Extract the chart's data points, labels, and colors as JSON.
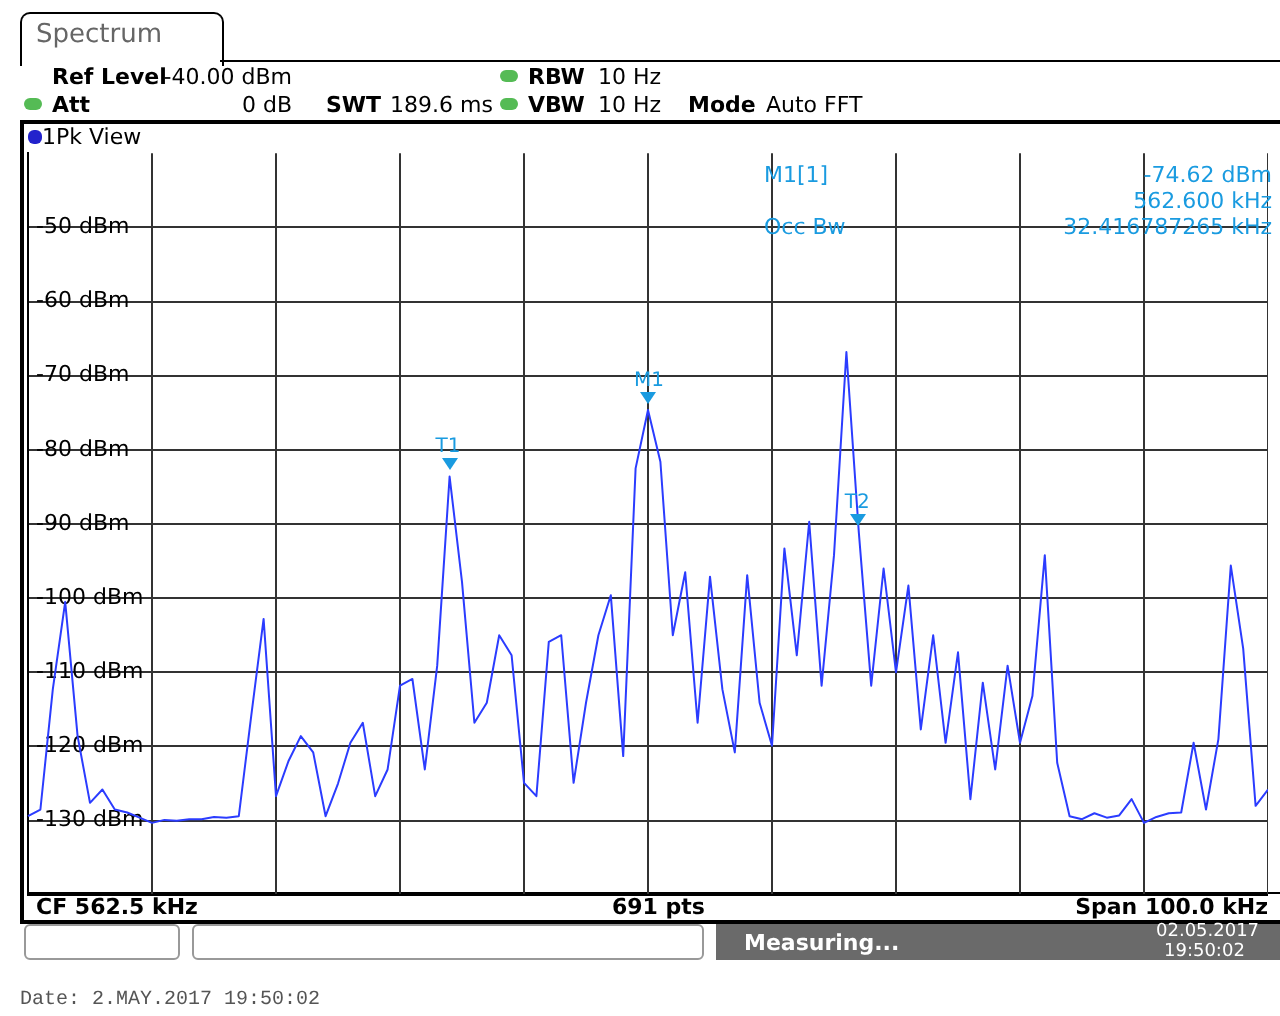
{
  "chart_data": {
    "type": "line",
    "title": "Spectrum",
    "subtitle": "1Pk View",
    "categories": [
      null,
      null,
      null,
      null,
      null,
      null,
      null,
      null,
      null,
      null,
      null,
      null,
      null,
      null,
      null,
      null,
      null,
      null,
      null,
      null,
      null,
      null,
      null,
      null,
      null,
      null,
      null,
      null,
      null,
      null,
      null,
      null,
      null,
      null,
      null,
      null,
      null,
      null,
      null,
      null,
      null,
      null,
      null,
      null,
      null,
      null,
      null,
      null,
      null,
      null,
      null,
      null,
      null,
      null,
      null,
      null,
      null,
      null,
      null,
      null,
      null,
      null,
      null,
      null,
      null,
      null,
      null,
      null,
      null,
      null,
      null,
      null,
      null,
      null,
      null,
      null,
      null,
      null,
      null,
      null,
      null,
      null,
      null,
      null,
      null,
      null,
      null,
      null,
      null,
      null,
      null,
      null,
      null,
      null,
      null,
      null,
      null,
      null,
      null,
      null,
      null
    ],
    "series": [
      {
        "color": "#2b3cff",
        "values": [
          -129.4,
          -128.5,
          -112.3,
          -100.5,
          -118.6,
          -127.6,
          -125.8,
          -128.5,
          -128.9,
          -129.6,
          -130.3,
          -129.9,
          -130.0,
          -129.8,
          -129.8,
          -129.5,
          -129.6,
          -129.4,
          -115.9,
          -102.8,
          -126.7,
          -122.0,
          -118.6,
          -120.8,
          -129.4,
          -125.0,
          -119.5,
          -116.8,
          -126.7,
          -123.1,
          -111.8,
          -110.9,
          -123.1,
          -109.1,
          -83.6,
          -97.8,
          -116.8,
          -114.1,
          -105.0,
          -107.7,
          -124.9,
          -126.7,
          -105.9,
          -105.0,
          -124.9,
          -114.1,
          -105.0,
          -99.6,
          -121.3,
          -82.5,
          -74.62,
          -81.6,
          -105.0,
          -96.5,
          -116.8,
          -97.1,
          -112.3,
          -120.8,
          -96.9,
          -114.1,
          -119.9,
          -93.3,
          -107.7,
          -89.7,
          -111.8,
          -94.2,
          -66.8,
          -91.1,
          -111.8,
          -96.0,
          -110.0,
          -98.3,
          -117.7,
          -105.0,
          -119.5,
          -107.3,
          -127.1,
          -111.4,
          -123.1,
          -109.1,
          -119.5,
          -113.2,
          -94.2,
          -122.2,
          -129.4,
          -129.8,
          -129.0,
          -129.6,
          -129.3,
          -127.1,
          -130.3,
          -129.5,
          -129.0,
          -128.9,
          -119.5,
          -128.5,
          -119.0,
          -95.6,
          -106.8,
          -128.0,
          -125.8
        ]
      }
    ],
    "ylim": [
      -140,
      -40
    ],
    "yticks": [
      {
        "value": -50,
        "label": "-50 dBm"
      },
      {
        "value": -60,
        "label": "-60 dBm"
      },
      {
        "value": -70,
        "label": "-70 dBm"
      },
      {
        "value": -80,
        "label": "-80 dBm"
      },
      {
        "value": -90,
        "label": "-90 dBm"
      },
      {
        "value": -100,
        "label": "-100 dBm"
      },
      {
        "value": -110,
        "label": "-110 dBm"
      },
      {
        "value": -120,
        "label": "-120 dBm"
      },
      {
        "value": -130,
        "label": "-130 dBm"
      }
    ],
    "tick_labels": "y",
    "grid": true,
    "legend": false,
    "marker": "none",
    "line_style": "solid",
    "annotations": [
      "Ref Level",
      "-40.00 dBm",
      "Att",
      "0 dB",
      "SWT",
      "189.6 ms",
      "RBW",
      "10 Hz",
      "VBW",
      "10 Hz",
      "Mode",
      "Auto FFT",
      "M1[1]",
      "-74.62 dBm",
      "562.600 kHz",
      "Occ Bw",
      "32.416787265 kHz",
      "CF 562.5 kHz",
      "691 pts",
      "Span 100.0 kHz",
      "Measuring...",
      "02.05.2017",
      "19:50:02",
      "Date: 2.MAY.2017  19:50:02",
      {
        "text": "T1",
        "y": -83.6
      },
      {
        "text": "M1",
        "y": -74.62
      },
      {
        "text": "T2",
        "y": -91.1
      }
    ]
  }
}
